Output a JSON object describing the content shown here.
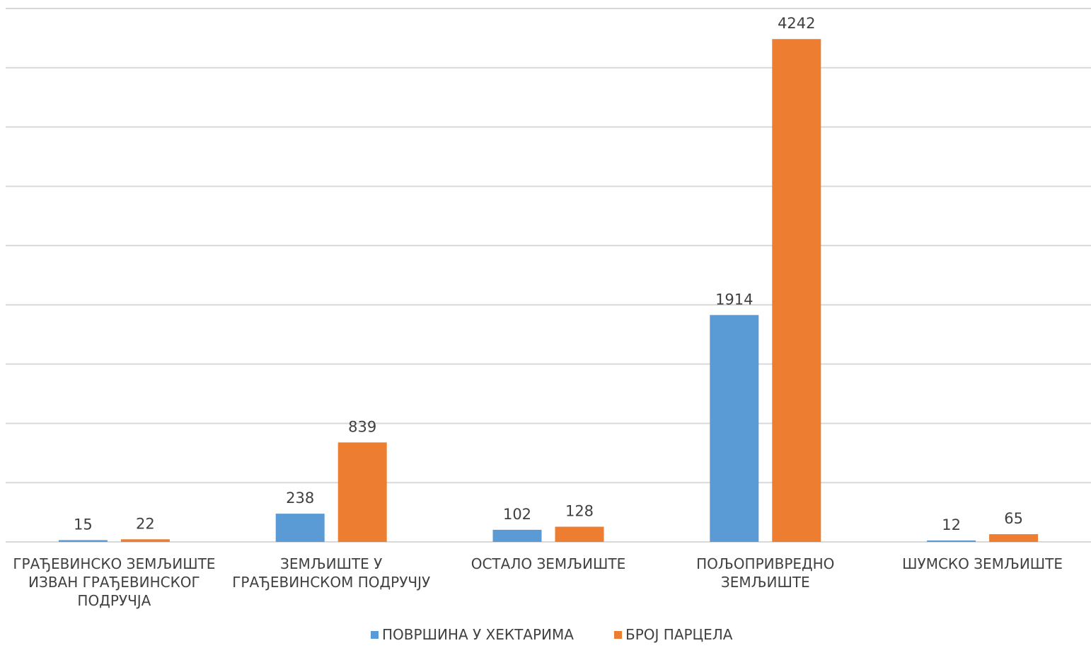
{
  "chart_data": {
    "type": "bar",
    "categories": [
      [
        "ГРАЂЕВИНСКО ЗЕМЉИШТЕ",
        "ИЗВАН ГРАЂЕВИНСКОГ",
        "ПОДРУЧЈА"
      ],
      [
        "ЗЕМЉИШТЕ У",
        "ГРАЂЕВИНСКОМ ПОДРУЧЈУ"
      ],
      [
        "ОСТАЛО ЗЕМЉИШТЕ"
      ],
      [
        "ПОЉОПРИВРЕДНО",
        "ЗЕМЉИШТЕ"
      ],
      [
        "ШУМСКО ЗЕМЉИШТЕ"
      ]
    ],
    "series": [
      {
        "name": "ПОВРШИНА У ХЕКТАРИМА",
        "color": "#5b9bd5",
        "values": [
          15,
          238,
          102,
          1914,
          12
        ]
      },
      {
        "name": "БРОЈ ПАРЦЕЛА",
        "color": "#ed7d31",
        "values": [
          22,
          839,
          128,
          4242,
          65
        ]
      }
    ],
    "ylim": [
      0,
      4500
    ],
    "gridlines": true,
    "y_tick_step": 500,
    "y_tick_labels_shown": false,
    "legend_position": "bottom-center"
  }
}
